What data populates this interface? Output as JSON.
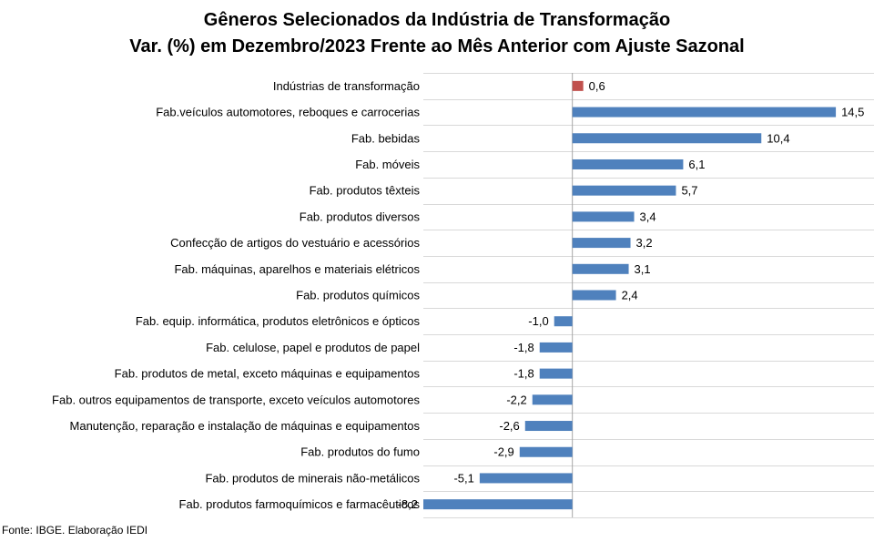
{
  "chart_data": {
    "type": "bar",
    "orientation": "horizontal",
    "title": "Gêneros Selecionados da Indústria de Transformação",
    "subtitle": "Var. (%) em Dezembro/2023 Frente ao Mês Anterior com Ajuste Sazonal",
    "xlim": [
      -8.2,
      16.6
    ],
    "grid": true,
    "legend": "none",
    "colors": {
      "default": "#4f81bd",
      "highlight": "#c0504d",
      "grid": "#d9d9d9",
      "axis": "#a6a6a6"
    },
    "categories": [
      "Indústrias de transformação",
      "Fab.veículos automotores, reboques e carrocerias",
      "Fab. bebidas",
      "Fab. móveis",
      "Fab. produtos têxteis",
      "Fab. produtos diversos",
      "Confecção de artigos do vestuário e acessórios",
      "Fab. máquinas, aparelhos e materiais elétricos",
      "Fab. produtos químicos",
      "Fab. equip. informática, produtos eletrônicos e ópticos",
      "Fab. celulose, papel e produtos de papel",
      "Fab. produtos de metal, exceto máquinas e equipamentos",
      "Fab. outros equipamentos de transporte, exceto veículos automotores",
      "Manutenção, reparação e instalação de máquinas e equipamentos",
      "Fab. produtos do fumo",
      "Fab. produtos de minerais não-metálicos",
      "Fab. produtos farmoquímicos e farmacêuticos"
    ],
    "values": [
      0.6,
      14.5,
      10.4,
      6.1,
      5.7,
      3.4,
      3.2,
      3.1,
      2.4,
      -1.0,
      -1.8,
      -1.8,
      -2.2,
      -2.6,
      -2.9,
      -5.1,
      -8.2
    ],
    "value_labels": [
      "0,6",
      "14,5",
      "10,4",
      "6,1",
      "5,7",
      "3,4",
      "3,2",
      "3,1",
      "2,4",
      "-1,0",
      "-1,8",
      "-1,8",
      "-2,2",
      "-2,6",
      "-2,9",
      "-5,1",
      "-8,2"
    ],
    "highlight_index": 0
  },
  "source": "Fonte: IBGE. Elaboração IEDI"
}
